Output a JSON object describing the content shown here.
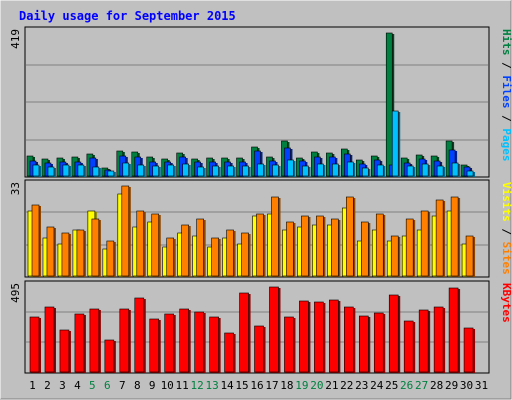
{
  "chart_data": {
    "type": "bar",
    "title": "Daily usage for September 2015",
    "categories": [
      "1",
      "2",
      "3",
      "4",
      "5",
      "6",
      "7",
      "8",
      "9",
      "10",
      "11",
      "12",
      "13",
      "14",
      "15",
      "16",
      "17",
      "18",
      "19",
      "20",
      "21",
      "22",
      "23",
      "24",
      "25",
      "26",
      "27",
      "28",
      "29",
      "30",
      "31"
    ],
    "weekend_days": [
      "5",
      "6",
      "12",
      "13",
      "19",
      "20",
      "26",
      "27"
    ],
    "panels": [
      {
        "id": "top",
        "max_label": "419",
        "ymax": 419,
        "legend": [
          {
            "text": "Hits",
            "color": "#008040"
          },
          {
            "text": "Files",
            "color": "#0040ff"
          },
          {
            "text": "Pages",
            "color": "#00c0ff"
          }
        ],
        "series": [
          {
            "name": "Hits",
            "color": "#008040",
            "values": [
              62,
              52,
              56,
              57,
              66,
              27,
              75,
              72,
              58,
              53,
              70,
              52,
              54,
              54,
              55,
              86,
              57,
              105,
              56,
              72,
              70,
              82,
              49,
              62,
              419,
              55,
              64,
              62,
              105,
              34,
              0
            ]
          },
          {
            "name": "Files",
            "color": "#0040ff",
            "values": [
              47,
              41,
              43,
              45,
              54,
              20,
              61,
              57,
              45,
              43,
              58,
              43,
              44,
              43,
              44,
              75,
              46,
              84,
              46,
              58,
              58,
              67,
              39,
              49,
              35,
              42,
              51,
              48,
              78,
              30,
              0
            ]
          },
          {
            "name": "Pages",
            "color": "#00c0ff",
            "values": [
              35,
              30,
              36,
              34,
              28,
              17,
              40,
              36,
              31,
              34,
              39,
              30,
              32,
              32,
              31,
              39,
              34,
              50,
              33,
              38,
              38,
              44,
              26,
              34,
              191,
              33,
              38,
              33,
              40,
              17,
              0
            ]
          }
        ]
      },
      {
        "id": "middle",
        "max_label": "33",
        "ymax": 33,
        "legend": [
          {
            "text": "Visits",
            "color": "#ffff00"
          },
          {
            "text": "Sites",
            "color": "#ff8000"
          }
        ],
        "series": [
          {
            "name": "Visits",
            "color": "#ffff00",
            "values": [
              24,
              14,
              12,
              17,
              24,
              10,
              30,
              18,
              20,
              11,
              16,
              15,
              11,
              14,
              12,
              22,
              23,
              17,
              18,
              19,
              19,
              25,
              13,
              17,
              13,
              15,
              17,
              22,
              24,
              12,
              0
            ]
          },
          {
            "name": "Sites",
            "color": "#ff8000",
            "values": [
              26,
              18,
              16,
              17,
              21,
              13,
              33,
              24,
              23,
              14,
              19,
              21,
              14,
              17,
              16,
              23,
              29,
              20,
              22,
              22,
              21,
              29,
              20,
              23,
              15,
              21,
              24,
              28,
              29,
              15,
              0
            ]
          }
        ]
      },
      {
        "id": "bottom",
        "max_label": "495",
        "ymax": 495,
        "legend": [
          {
            "text": "KBytes",
            "color": "#ff0000"
          }
        ],
        "series": [
          {
            "name": "KBytes",
            "color": "#ff0000",
            "values": [
              320,
              380,
              250,
              340,
              370,
              190,
              370,
              430,
              310,
              340,
              370,
              350,
              320,
              230,
              460,
              270,
              495,
              320,
              415,
              410,
              420,
              380,
              330,
              345,
              450,
              300,
              360,
              380,
              490,
              260,
              0
            ]
          }
        ]
      }
    ],
    "colors": {
      "background": "#c0c0c0",
      "title": "#0000ff",
      "grid": "#808080",
      "weekday_label": "#000000",
      "weekend_label": "#008040"
    }
  }
}
